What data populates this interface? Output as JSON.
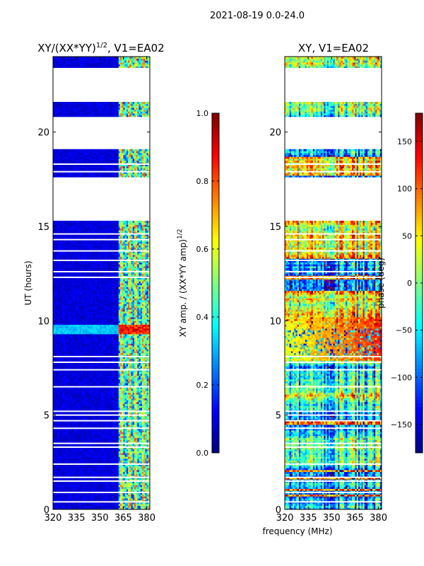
{
  "figure_title": "2021-08-19 0.0-24.0",
  "colors": {
    "jet_stops": [
      "#00007f",
      "#0000ff",
      "#007fff",
      "#00ffff",
      "#7fff7f",
      "#ffff00",
      "#ff7f00",
      "#ff0000",
      "#7f0000"
    ],
    "axis": "#000000",
    "gap": "#ffffff"
  },
  "chart_data": [
    {
      "type": "heatmap",
      "title_base": "XY/(XX*YY)",
      "title_exp": "1/2",
      "title_suffix": ", V1=EA02",
      "xlabel": "",
      "ylabel": "UT (hours)",
      "xlim": [
        320,
        382
      ],
      "ylim": [
        0,
        24
      ],
      "xticks": [
        320,
        335,
        350,
        365,
        380
      ],
      "yticks": [
        0,
        5,
        10,
        15,
        20
      ],
      "colorbar": {
        "label": "XY amp. / (XX*YY amp)",
        "label_exp": "1/2",
        "range": [
          0,
          1
        ],
        "ticks": [
          "0.0",
          "0.2",
          "0.4",
          "0.6",
          "0.8",
          "1.0"
        ],
        "tick_values": [
          0,
          0.2,
          0.4,
          0.6,
          0.8,
          1.0
        ]
      },
      "no_data_hours": [
        [
          15.3,
          17.6
        ],
        [
          19.1,
          20.8
        ],
        [
          21.6,
          23.4
        ]
      ],
      "flagged_hours": [
        0.4,
        0.9,
        1.5,
        1.7,
        2.4,
        3.3,
        3.5,
        4.3,
        4.7,
        5.0,
        5.2,
        6.5,
        7.4,
        7.8,
        8.1,
        12.3,
        12.6,
        13.2,
        13.7,
        14.3,
        14.6,
        18.3,
        17.9
      ],
      "flare_hours": [
        9.3,
        9.8
      ],
      "flare_channels": [
        365,
        369,
        373,
        377
      ],
      "bright_channel_range": [
        362,
        382
      ],
      "baseline_level": 0.05,
      "bright_level": 0.45
    },
    {
      "type": "heatmap",
      "title_base": "XY, V1=EA02",
      "title_exp": "",
      "title_suffix": "",
      "xlabel": "frequency (MHz)",
      "ylabel": "",
      "xlim": [
        320,
        382
      ],
      "ylim": [
        0,
        24
      ],
      "xticks": [
        320,
        335,
        350,
        365,
        380
      ],
      "yticks": [
        0,
        5,
        10,
        15,
        20
      ],
      "colorbar": {
        "label": "phase (deg)",
        "label_exp": "",
        "range": [
          -180,
          180
        ],
        "ticks": [
          "−150",
          "−100",
          "−50",
          "0",
          "50",
          "100",
          "150"
        ],
        "tick_values": [
          -150,
          -100,
          -50,
          0,
          50,
          100,
          150
        ]
      },
      "no_data_hours": [
        [
          15.3,
          17.6
        ],
        [
          19.1,
          20.8
        ],
        [
          21.6,
          23.4
        ]
      ],
      "flagged_hours": [
        0.4,
        0.9,
        1.5,
        1.7,
        2.4,
        3.3,
        3.5,
        4.3,
        4.7,
        5.0,
        5.2,
        6.5,
        7.4,
        7.8,
        8.1,
        12.3,
        12.6,
        13.2,
        13.7,
        14.3,
        14.6,
        18.3,
        17.9
      ],
      "stable_band_hours": [
        7.9,
        10.2
      ]
    }
  ]
}
